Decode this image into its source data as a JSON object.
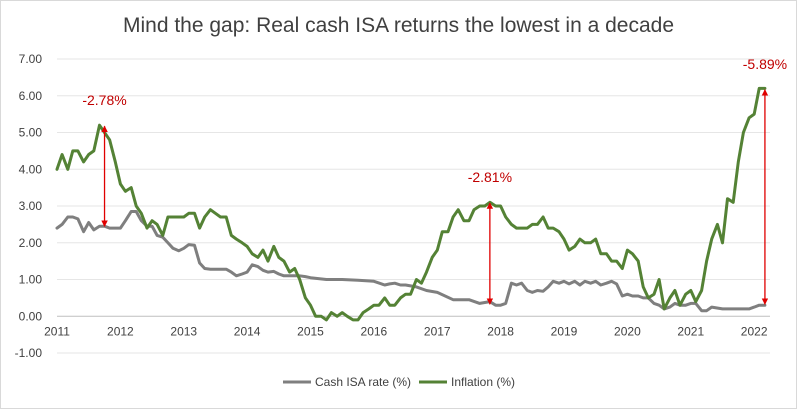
{
  "chart_data": {
    "type": "line",
    "title": "Mind the gap: Real cash ISA returns the lowest in a decade",
    "xlabel": "",
    "ylabel": "",
    "ylim": [
      -1.0,
      7.0
    ],
    "yticks": [
      "-1.00",
      "0.00",
      "1.00",
      "2.00",
      "3.00",
      "4.00",
      "5.00",
      "6.00",
      "7.00"
    ],
    "xlim": [
      2011.0,
      2022.25
    ],
    "xticks": [
      "2011",
      "2012",
      "2013",
      "2014",
      "2015",
      "2016",
      "2017",
      "2018",
      "2019",
      "2020",
      "2021",
      "2022"
    ],
    "grid": true,
    "legend_position": "bottom",
    "series": [
      {
        "name": "Cash ISA rate (%)",
        "color": "#7f7f7f",
        "x": [
          2011.0,
          2011.08,
          2011.17,
          2011.25,
          2011.33,
          2011.42,
          2011.5,
          2011.58,
          2011.67,
          2011.75,
          2011.83,
          2011.92,
          2012.0,
          2012.08,
          2012.17,
          2012.25,
          2012.33,
          2012.42,
          2012.5,
          2012.58,
          2012.67,
          2012.75,
          2012.83,
          2012.92,
          2013.0,
          2013.08,
          2013.17,
          2013.25,
          2013.33,
          2013.42,
          2013.5,
          2013.58,
          2013.67,
          2013.75,
          2013.83,
          2013.92,
          2014.0,
          2014.08,
          2014.17,
          2014.25,
          2014.33,
          2014.42,
          2014.5,
          2014.58,
          2014.67,
          2014.75,
          2014.83,
          2014.92,
          2015.0,
          2015.25,
          2015.5,
          2015.75,
          2016.0,
          2016.17,
          2016.25,
          2016.33,
          2016.42,
          2016.5,
          2016.67,
          2016.83,
          2017.0,
          2017.25,
          2017.5,
          2017.67,
          2017.83,
          2017.92,
          2018.0,
          2018.08,
          2018.17,
          2018.25,
          2018.33,
          2018.42,
          2018.5,
          2018.58,
          2018.67,
          2018.75,
          2018.83,
          2018.92,
          2019.0,
          2019.08,
          2019.17,
          2019.25,
          2019.33,
          2019.42,
          2019.5,
          2019.58,
          2019.67,
          2019.75,
          2019.83,
          2019.92,
          2020.0,
          2020.08,
          2020.17,
          2020.25,
          2020.33,
          2020.42,
          2020.5,
          2020.58,
          2020.67,
          2020.75,
          2020.83,
          2020.92,
          2021.0,
          2021.08,
          2021.17,
          2021.25,
          2021.33,
          2021.5,
          2021.75,
          2021.92,
          2022.0,
          2022.08,
          2022.17
        ],
        "y": [
          2.4,
          2.5,
          2.7,
          2.7,
          2.65,
          2.3,
          2.55,
          2.35,
          2.45,
          2.45,
          2.4,
          2.4,
          2.4,
          2.6,
          2.85,
          2.85,
          2.6,
          2.45,
          2.45,
          2.2,
          2.15,
          2.0,
          1.85,
          1.78,
          1.85,
          1.95,
          1.93,
          1.45,
          1.3,
          1.28,
          1.28,
          1.28,
          1.28,
          1.2,
          1.1,
          1.15,
          1.2,
          1.4,
          1.35,
          1.25,
          1.2,
          1.22,
          1.15,
          1.1,
          1.1,
          1.1,
          1.1,
          1.08,
          1.05,
          1.0,
          1.0,
          0.98,
          0.95,
          0.85,
          0.88,
          0.9,
          0.85,
          0.85,
          0.8,
          0.7,
          0.65,
          0.45,
          0.45,
          0.35,
          0.4,
          0.3,
          0.3,
          0.35,
          0.9,
          0.85,
          0.9,
          0.7,
          0.65,
          0.7,
          0.68,
          0.8,
          0.95,
          0.9,
          0.95,
          0.88,
          0.95,
          0.85,
          0.95,
          0.9,
          0.95,
          0.85,
          0.9,
          0.95,
          0.88,
          0.55,
          0.6,
          0.55,
          0.55,
          0.5,
          0.5,
          0.35,
          0.3,
          0.2,
          0.25,
          0.35,
          0.3,
          0.3,
          0.35,
          0.35,
          0.15,
          0.15,
          0.25,
          0.2,
          0.2,
          0.2,
          0.25,
          0.3,
          0.3
        ]
      },
      {
        "name": "Inflation (%)",
        "color": "#548235",
        "x": [
          2011.0,
          2011.08,
          2011.17,
          2011.25,
          2011.33,
          2011.42,
          2011.5,
          2011.58,
          2011.67,
          2011.75,
          2011.83,
          2011.92,
          2012.0,
          2012.08,
          2012.17,
          2012.25,
          2012.33,
          2012.42,
          2012.5,
          2012.58,
          2012.67,
          2012.75,
          2012.83,
          2012.92,
          2013.0,
          2013.08,
          2013.17,
          2013.25,
          2013.33,
          2013.42,
          2013.5,
          2013.58,
          2013.67,
          2013.75,
          2013.83,
          2013.92,
          2014.0,
          2014.08,
          2014.17,
          2014.25,
          2014.33,
          2014.42,
          2014.5,
          2014.58,
          2014.67,
          2014.75,
          2014.83,
          2014.92,
          2015.0,
          2015.08,
          2015.17,
          2015.25,
          2015.33,
          2015.42,
          2015.5,
          2015.58,
          2015.67,
          2015.75,
          2015.83,
          2015.92,
          2016.0,
          2016.08,
          2016.17,
          2016.25,
          2016.33,
          2016.42,
          2016.5,
          2016.58,
          2016.67,
          2016.75,
          2016.83,
          2016.92,
          2017.0,
          2017.08,
          2017.17,
          2017.25,
          2017.33,
          2017.42,
          2017.5,
          2017.58,
          2017.67,
          2017.75,
          2017.83,
          2017.92,
          2018.0,
          2018.08,
          2018.17,
          2018.25,
          2018.33,
          2018.42,
          2018.5,
          2018.58,
          2018.67,
          2018.75,
          2018.83,
          2018.92,
          2019.0,
          2019.08,
          2019.17,
          2019.25,
          2019.33,
          2019.42,
          2019.5,
          2019.58,
          2019.67,
          2019.75,
          2019.83,
          2019.92,
          2020.0,
          2020.08,
          2020.17,
          2020.25,
          2020.33,
          2020.42,
          2020.5,
          2020.58,
          2020.67,
          2020.75,
          2020.83,
          2020.92,
          2021.0,
          2021.08,
          2021.17,
          2021.25,
          2021.33,
          2021.42,
          2021.5,
          2021.58,
          2021.67,
          2021.75,
          2021.83,
          2021.92,
          2022.0,
          2022.08,
          2022.17
        ],
        "y": [
          4.0,
          4.4,
          4.0,
          4.5,
          4.5,
          4.2,
          4.4,
          4.5,
          5.2,
          5.0,
          4.8,
          4.2,
          3.6,
          3.4,
          3.5,
          3.0,
          2.8,
          2.4,
          2.6,
          2.5,
          2.2,
          2.7,
          2.7,
          2.7,
          2.7,
          2.8,
          2.8,
          2.4,
          2.7,
          2.9,
          2.8,
          2.7,
          2.7,
          2.2,
          2.1,
          2.0,
          1.9,
          1.7,
          1.6,
          1.8,
          1.5,
          1.9,
          1.6,
          1.5,
          1.2,
          1.3,
          1.0,
          0.5,
          0.3,
          0.0,
          0.0,
          -0.1,
          0.1,
          0.0,
          0.1,
          0.0,
          -0.1,
          -0.1,
          0.1,
          0.2,
          0.3,
          0.3,
          0.5,
          0.3,
          0.3,
          0.5,
          0.6,
          0.6,
          1.0,
          0.9,
          1.2,
          1.6,
          1.8,
          2.3,
          2.3,
          2.7,
          2.9,
          2.6,
          2.6,
          2.9,
          3.0,
          3.0,
          3.1,
          3.0,
          3.0,
          2.7,
          2.5,
          2.4,
          2.4,
          2.4,
          2.5,
          2.5,
          2.7,
          2.4,
          2.4,
          2.3,
          2.1,
          1.8,
          1.9,
          2.1,
          2.0,
          2.0,
          2.1,
          1.7,
          1.7,
          1.5,
          1.5,
          1.3,
          1.8,
          1.7,
          1.5,
          0.8,
          0.5,
          0.6,
          1.0,
          0.2,
          0.5,
          0.7,
          0.3,
          0.6,
          0.7,
          0.4,
          0.7,
          1.5,
          2.1,
          2.5,
          2.0,
          3.2,
          3.1,
          4.2,
          5.0,
          5.4,
          5.5,
          6.2,
          6.2
        ]
      }
    ],
    "annotations": [
      {
        "label": "-2.78%",
        "x": 2011.75,
        "y_from": 2.42,
        "y_to": 5.2
      },
      {
        "label": "-2.81%",
        "x": 2017.83,
        "y_from": 0.3,
        "y_to": 3.11
      },
      {
        "label": "-5.89%",
        "x": 2022.17,
        "y_from": 0.3,
        "y_to": 6.19
      }
    ]
  }
}
